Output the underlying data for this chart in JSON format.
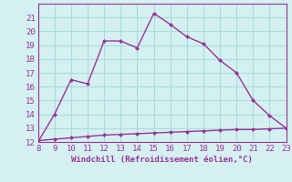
{
  "xlabel": "Windchill (Refroidissement éolien,°C)",
  "x_main": [
    8,
    9,
    10,
    11,
    12,
    13,
    14,
    15,
    16,
    17,
    18,
    19,
    20,
    21,
    22,
    23
  ],
  "y_main": [
    12,
    14,
    16.5,
    16.2,
    19.3,
    19.3,
    18.8,
    21.3,
    20.5,
    19.6,
    19.1,
    17.9,
    17.0,
    15.0,
    13.9,
    13.0
  ],
  "x_flat": [
    8,
    9,
    10,
    11,
    12,
    13,
    14,
    15,
    16,
    17,
    18,
    19,
    20,
    21,
    22,
    23
  ],
  "y_flat": [
    12.1,
    12.2,
    12.3,
    12.4,
    12.5,
    12.55,
    12.6,
    12.65,
    12.7,
    12.75,
    12.8,
    12.85,
    12.9,
    12.9,
    12.95,
    13.0
  ],
  "line_color": "#993399",
  "bg_color": "#d4f0f0",
  "grid_color": "#aadddd",
  "ylim": [
    12,
    22
  ],
  "xlim": [
    8,
    23
  ],
  "yticks": [
    12,
    13,
    14,
    15,
    16,
    17,
    18,
    19,
    20,
    21
  ],
  "xticks": [
    8,
    9,
    10,
    11,
    12,
    13,
    14,
    15,
    16,
    17,
    18,
    19,
    20,
    21,
    22,
    23
  ],
  "marker_size": 2.5,
  "linewidth": 1.0,
  "tick_fontsize": 6.5,
  "xlabel_fontsize": 6.5
}
